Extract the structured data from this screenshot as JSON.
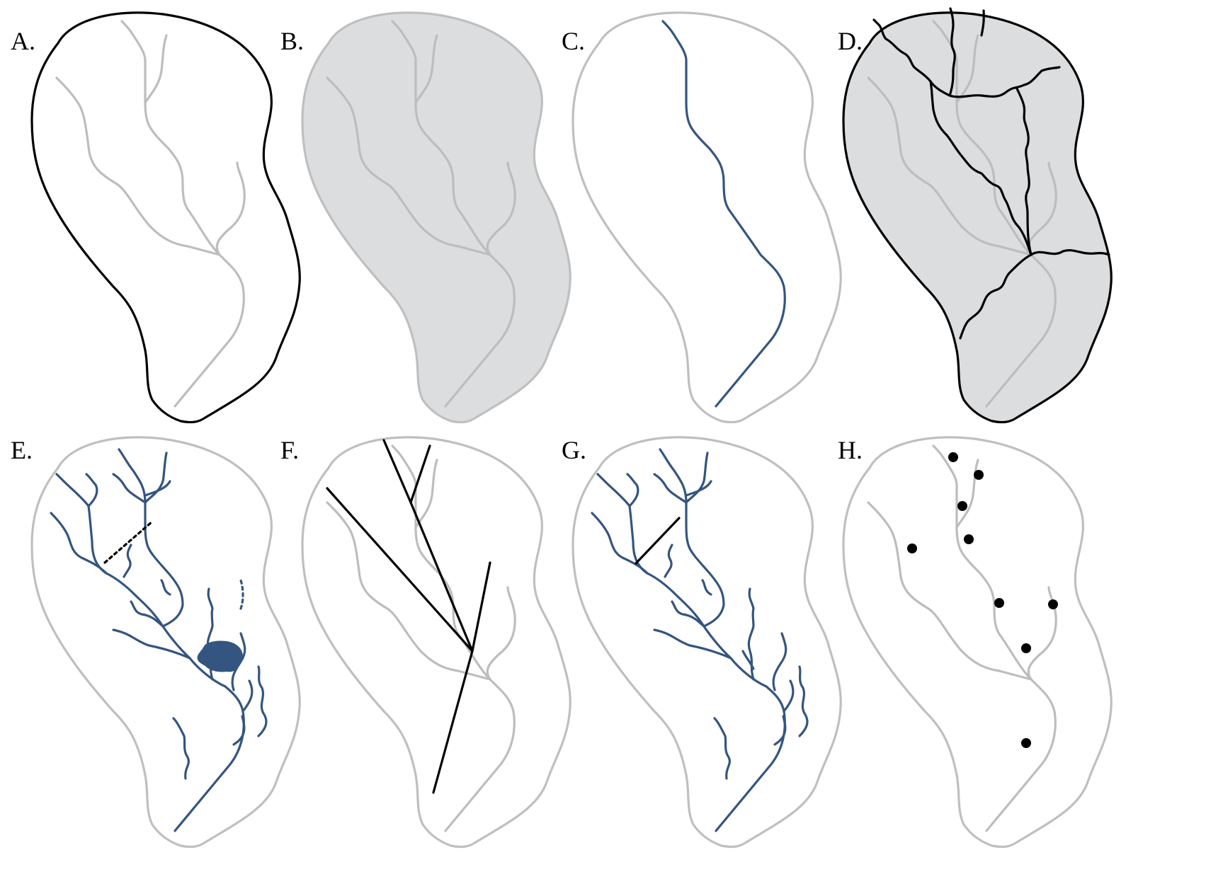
{
  "figure": {
    "panels": [
      {
        "id": "A",
        "label": "A."
      },
      {
        "id": "B",
        "label": "B."
      },
      {
        "id": "C",
        "label": "C."
      },
      {
        "id": "D",
        "label": "D."
      },
      {
        "id": "E",
        "label": "E."
      },
      {
        "id": "F",
        "label": "F."
      },
      {
        "id": "G",
        "label": "G."
      },
      {
        "id": "H",
        "label": "H."
      }
    ],
    "colors": {
      "outline_black": "#000000",
      "outline_gray": "#bfbfbf",
      "network_gray": "#bdbdbd",
      "basin_fill": "#dcdddf",
      "stream_blue": "#34557f",
      "marker_black": "#000000"
    }
  }
}
